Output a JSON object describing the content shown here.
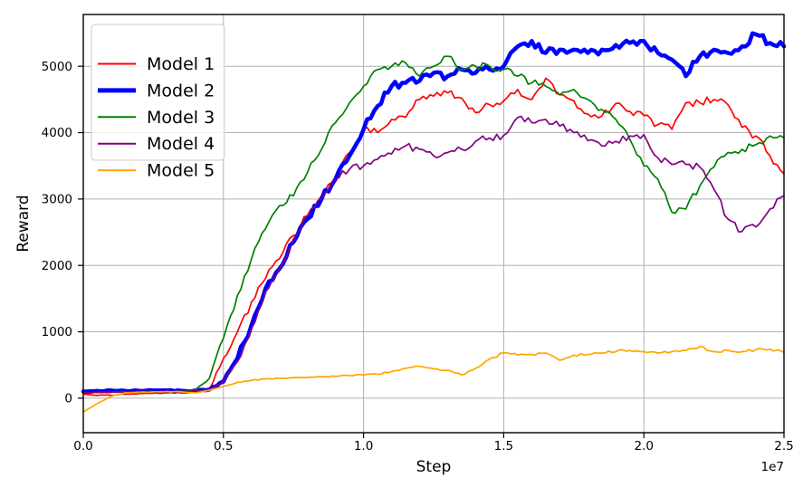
{
  "figure": {
    "background": "#ffffff",
    "plot_border_color": "#000000"
  },
  "chart_data": {
    "type": "line",
    "title": "",
    "xlabel": "Step",
    "ylabel": "Reward",
    "grid": true,
    "grid_color": "#b0b0b0",
    "legend_position": "upper left",
    "x_axis": {
      "offset_label": "1e7",
      "tick_labels": [
        "0.0",
        "0.5",
        "1.0",
        "1.5",
        "2.0",
        "2.5"
      ],
      "ticks": [
        0,
        0.5,
        1.0,
        1.5,
        2.0,
        2.5
      ],
      "lim": [
        0,
        2.5
      ]
    },
    "y_axis": {
      "tick_labels": [
        "0",
        "1000",
        "2000",
        "3000",
        "4000",
        "5000"
      ],
      "ticks": [
        0,
        1000,
        2000,
        3000,
        4000,
        5000
      ],
      "lim": [
        -520,
        5780
      ]
    },
    "x": [
      0,
      0.05,
      0.1,
      0.15,
      0.2,
      0.25,
      0.3,
      0.35,
      0.4,
      0.45,
      0.5,
      0.55,
      0.6,
      0.65,
      0.7,
      0.75,
      0.8,
      0.85,
      0.9,
      0.95,
      1,
      1.05,
      1.1,
      1.15,
      1.2,
      1.25,
      1.3,
      1.35,
      1.4,
      1.45,
      1.5,
      1.55,
      1.6,
      1.65,
      1.7,
      1.75,
      1.8,
      1.85,
      1.9,
      1.95,
      2,
      2.05,
      2.1,
      2.15,
      2.2,
      2.25,
      2.3,
      2.35,
      2.4,
      2.45,
      2.5
    ],
    "series": [
      {
        "name": "Model 1",
        "color": "#ff0000",
        "line_width": 1.7,
        "values": [
          60,
          40,
          45,
          60,
          70,
          75,
          80,
          80,
          90,
          130,
          600,
          1000,
          1450,
          1800,
          2100,
          2450,
          2750,
          3050,
          3300,
          3700,
          4050,
          4000,
          4200,
          4230,
          4500,
          4550,
          4600,
          4520,
          4300,
          4420,
          4480,
          4650,
          4500,
          4820,
          4570,
          4480,
          4280,
          4250,
          4440,
          4320,
          4260,
          4120,
          4050,
          4450,
          4450,
          4500,
          4420,
          4080,
          3950,
          3650,
          3380
        ]
      },
      {
        "name": "Model 2",
        "color": "#0000ff",
        "line_width": 4.5,
        "values": [
          100,
          110,
          115,
          110,
          110,
          115,
          115,
          110,
          115,
          130,
          250,
          600,
          1100,
          1650,
          1950,
          2350,
          2700,
          3000,
          3300,
          3650,
          4050,
          4400,
          4700,
          4750,
          4780,
          4900,
          4850,
          4950,
          4900,
          4950,
          5000,
          5300,
          5380,
          5200,
          5250,
          5250,
          5200,
          5250,
          5320,
          5350,
          5380,
          5200,
          5100,
          4850,
          5150,
          5250,
          5200,
          5300,
          5480,
          5350,
          5300
        ]
      },
      {
        "name": "Model 3",
        "color": "#008000",
        "line_width": 1.7,
        "values": [
          80,
          85,
          90,
          95,
          95,
          100,
          100,
          100,
          120,
          300,
          900,
          1550,
          2100,
          2550,
          2900,
          3050,
          3400,
          3750,
          4150,
          4450,
          4700,
          4950,
          5000,
          5050,
          4850,
          5000,
          5150,
          4950,
          5000,
          5000,
          4950,
          4850,
          4750,
          4700,
          4570,
          4650,
          4500,
          4350,
          4200,
          3900,
          3500,
          3300,
          2800,
          2850,
          3200,
          3480,
          3700,
          3750,
          3820,
          3950,
          3920
        ]
      },
      {
        "name": "Model 4",
        "color": "#800080",
        "line_width": 1.7,
        "values": [
          80,
          85,
          90,
          95,
          100,
          100,
          100,
          100,
          110,
          130,
          250,
          550,
          1050,
          1600,
          1950,
          2400,
          2750,
          3000,
          3300,
          3450,
          3500,
          3600,
          3680,
          3800,
          3750,
          3650,
          3700,
          3750,
          3870,
          3920,
          3960,
          4230,
          4150,
          4200,
          4100,
          4000,
          3880,
          3800,
          3870,
          3950,
          3970,
          3620,
          3520,
          3520,
          3480,
          3150,
          2700,
          2510,
          2580,
          2850,
          3050
        ]
      },
      {
        "name": "Model 5",
        "color": "#ffa500",
        "line_width": 1.7,
        "values": [
          -210,
          -80,
          30,
          80,
          90,
          95,
          100,
          95,
          80,
          120,
          180,
          240,
          270,
          290,
          300,
          310,
          310,
          320,
          330,
          340,
          350,
          360,
          400,
          450,
          480,
          440,
          420,
          350,
          450,
          590,
          680,
          650,
          660,
          680,
          570,
          650,
          660,
          680,
          700,
          720,
          700,
          680,
          700,
          720,
          780,
          700,
          720,
          700,
          730,
          740,
          690
        ]
      }
    ]
  }
}
